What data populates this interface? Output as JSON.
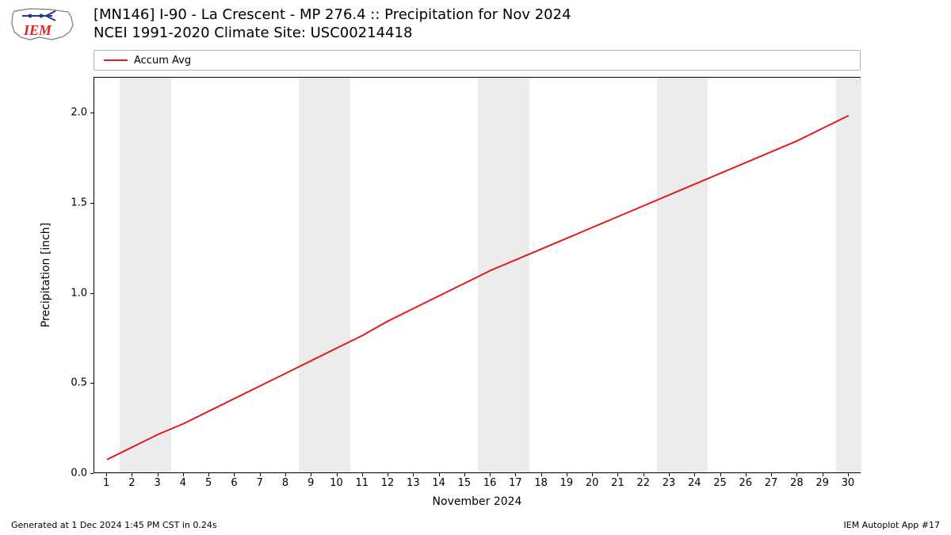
{
  "logo": {
    "text_label": "IEM",
    "outline_color": "#7a7a7a",
    "text_color": "#d62728",
    "accent_color": "#1f3a93"
  },
  "title": {
    "line1": "[MN146] I-90 - La Crescent - MP 276.4  :: Precipitation for Nov 2024",
    "line2": "NCEI 1991-2020 Climate Site: USC00214418"
  },
  "legend": {
    "label": "Accum Avg",
    "color": "#e41a1c"
  },
  "chart": {
    "type": "line",
    "ylabel": "Precipitation [inch]",
    "xlabel": "November 2024",
    "ylim": [
      0.0,
      2.2
    ],
    "ytick_step": 0.5,
    "yticks": [
      0.0,
      0.5,
      1.0,
      1.5,
      2.0
    ],
    "xlim": [
      0.5,
      30.5
    ],
    "xticks": [
      1,
      2,
      3,
      4,
      5,
      6,
      7,
      8,
      9,
      10,
      11,
      12,
      13,
      14,
      15,
      16,
      17,
      18,
      19,
      20,
      21,
      22,
      23,
      24,
      25,
      26,
      27,
      28,
      29,
      30
    ],
    "weekend_bands": [
      [
        1.5,
        3.5
      ],
      [
        8.5,
        10.5
      ],
      [
        15.5,
        17.5
      ],
      [
        22.5,
        24.5
      ],
      [
        29.5,
        30.5
      ]
    ],
    "weekend_color": "#ececec",
    "line_color": "#e41a1c",
    "line_width": 2,
    "background_color": "#ffffff",
    "series": {
      "x": [
        1,
        2,
        3,
        4,
        5,
        6,
        7,
        8,
        9,
        10,
        11,
        12,
        13,
        14,
        15,
        16,
        17,
        18,
        19,
        20,
        21,
        22,
        23,
        24,
        25,
        26,
        27,
        28,
        29,
        30
      ],
      "y": [
        0.08,
        0.15,
        0.22,
        0.28,
        0.35,
        0.42,
        0.49,
        0.56,
        0.63,
        0.7,
        0.77,
        0.85,
        0.92,
        0.99,
        1.06,
        1.13,
        1.19,
        1.25,
        1.31,
        1.37,
        1.43,
        1.49,
        1.55,
        1.61,
        1.67,
        1.73,
        1.79,
        1.85,
        1.92,
        1.99
      ]
    }
  },
  "footer": {
    "left": "Generated at 1 Dec 2024 1:45 PM CST in 0.24s",
    "right": "IEM Autoplot App #17"
  }
}
